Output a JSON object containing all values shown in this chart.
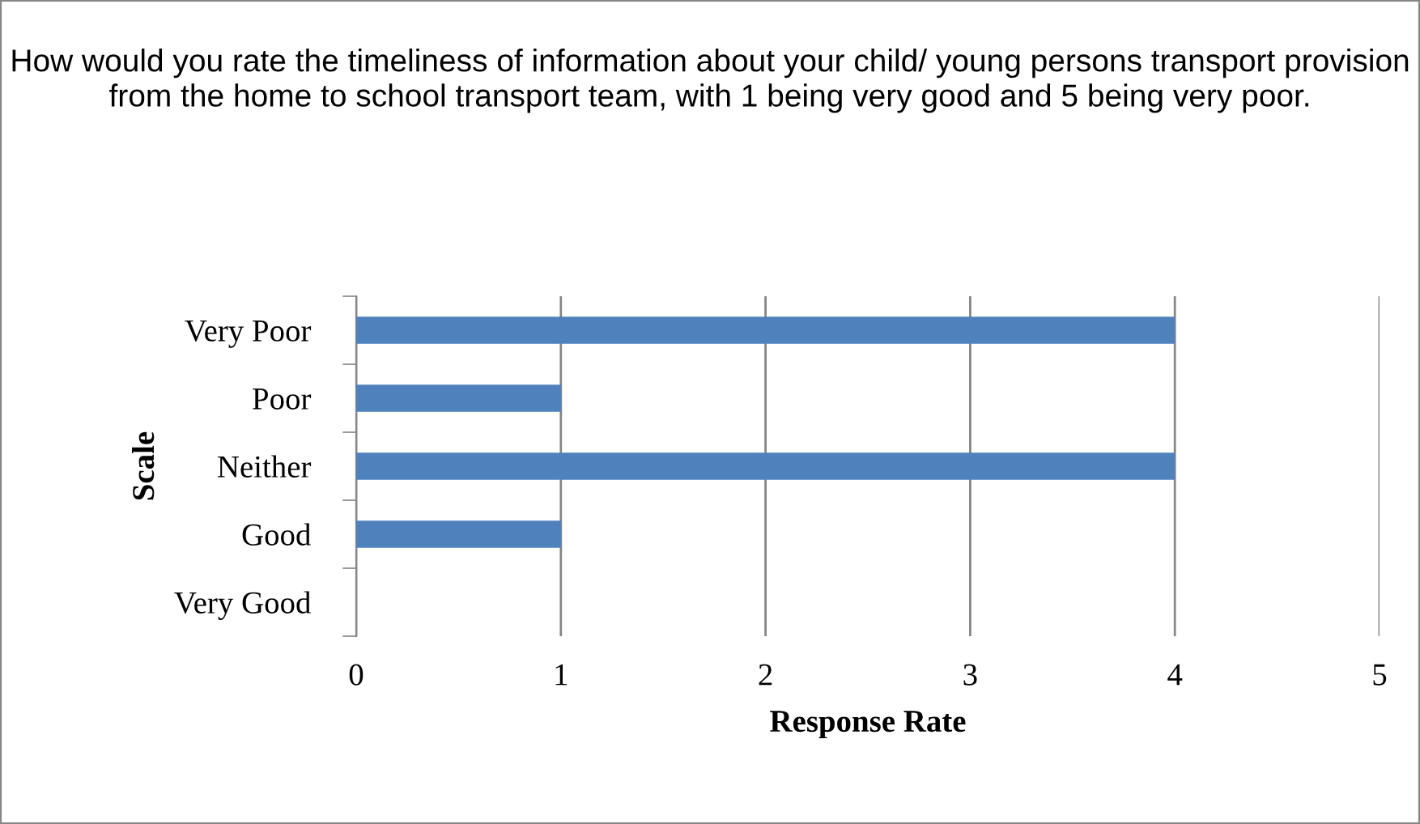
{
  "chart_data": {
    "type": "bar",
    "orientation": "horizontal",
    "title": "How would you rate the timeliness of information about your child/ young persons transport provision from the home to school transport team, with 1 being very good and 5 being very poor.",
    "xlabel": "Response Rate",
    "ylabel": "Scale",
    "categories": [
      "Very Poor",
      "Poor",
      "Neither",
      "Good",
      "Very Good"
    ],
    "values": [
      4,
      1,
      4,
      1,
      0
    ],
    "color": "#4f81bd",
    "xlim": [
      0,
      5
    ],
    "xticks": [
      0,
      1,
      2,
      3,
      4,
      5
    ],
    "grid": "x",
    "legend": false
  }
}
